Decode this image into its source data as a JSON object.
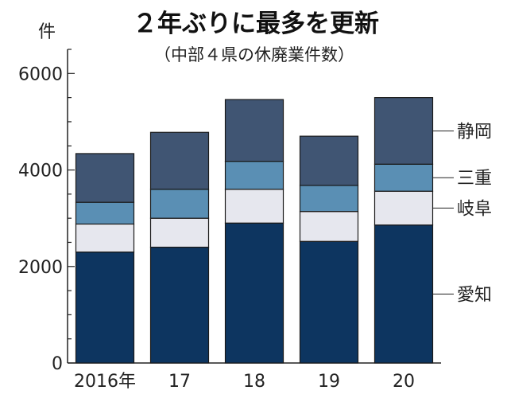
{
  "chart_data": {
    "type": "bar",
    "stacked": true,
    "title": "２年ぶりに最多を更新",
    "subtitle": "（中部４県の休廃業件数）",
    "ylabel": "件",
    "xlabel": "",
    "categories": [
      "2016年",
      "17",
      "18",
      "19",
      "20"
    ],
    "ylim": [
      0,
      6500
    ],
    "yticks": [
      0,
      2000,
      4000,
      6000
    ],
    "grid": false,
    "legend_position": "right",
    "series": [
      {
        "name": "愛知",
        "color": "#0d3560",
        "values": [
          2300,
          2400,
          2900,
          2520,
          2860
        ]
      },
      {
        "name": "岐阜",
        "color": "#e6e7ee",
        "values": [
          580,
          600,
          700,
          620,
          700
        ]
      },
      {
        "name": "三重",
        "color": "#5a8fb4",
        "values": [
          450,
          600,
          580,
          540,
          560
        ]
      },
      {
        "name": "静岡",
        "color": "#405573",
        "values": [
          1010,
          1180,
          1280,
          1020,
          1380
        ]
      }
    ]
  }
}
